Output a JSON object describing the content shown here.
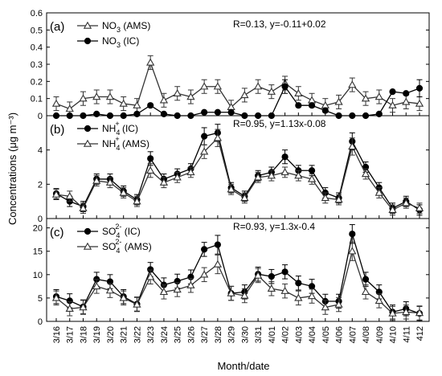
{
  "x_label": "Month/date",
  "y_label": "Concentrations (μg m⁻³)",
  "categories": [
    "3/16",
    "3/17",
    "3/18",
    "3/19",
    "3/20",
    "3/21",
    "3/22",
    "3/23",
    "3/24",
    "3/25",
    "3/26",
    "3/27",
    "3/28",
    "3/29",
    "3/30",
    "3/31",
    "4/01",
    "4/02",
    "4/03",
    "4/04",
    "4/05",
    "4/06",
    "4/07",
    "4/08",
    "4/09",
    "4/10",
    "4/11",
    "412"
  ],
  "chart_data": [
    {
      "type": "line",
      "panel_label": "(a)",
      "annotation": "R=0.13, y=-0.11+0.02",
      "ylim": [
        0,
        0.6
      ],
      "yticks": [
        0,
        0.1,
        0.2,
        0.3,
        0.4,
        0.5,
        0.6
      ],
      "legend_position": "top-left",
      "series": [
        {
          "name": "NO3 (AMS)",
          "name_base": "NO",
          "name_sub": "3",
          "name_sup": "",
          "name_suffix": " (AMS)",
          "marker": "open-triangle",
          "values": [
            0.07,
            0.04,
            0.1,
            0.11,
            0.11,
            0.07,
            0.06,
            0.31,
            0.09,
            0.13,
            0.11,
            0.17,
            0.17,
            0.05,
            0.12,
            0.17,
            0.14,
            0.19,
            0.13,
            0.09,
            0.06,
            0.08,
            0.18,
            0.1,
            0.11,
            0.06,
            0.08,
            0.07
          ],
          "errors": [
            0.04,
            0.04,
            0.04,
            0.04,
            0.04,
            0.04,
            0.04,
            0.04,
            0.04,
            0.04,
            0.04,
            0.04,
            0.04,
            0.04,
            0.04,
            0.04,
            0.04,
            0.04,
            0.04,
            0.04,
            0.04,
            0.04,
            0.04,
            0.04,
            0.04,
            0.04,
            0.04,
            0.04
          ]
        },
        {
          "name": "NO3 (IC)",
          "name_base": "NO",
          "name_sub": "3",
          "name_sup": "",
          "name_suffix": " (IC)",
          "marker": "filled-circle",
          "values": [
            0.0,
            0.0,
            0.0,
            0.01,
            0.0,
            0.0,
            0.01,
            0.06,
            0.01,
            0.0,
            0.0,
            0.02,
            0.02,
            0.02,
            0.0,
            0.0,
            0.0,
            0.17,
            0.06,
            0.06,
            0.03,
            0.0,
            0.0,
            0.0,
            0.01,
            0.14,
            0.13,
            0.16
          ],
          "errors": [
            0,
            0,
            0,
            0,
            0,
            0,
            0,
            0,
            0,
            0,
            0,
            0,
            0,
            0,
            0,
            0,
            0,
            0.04,
            0,
            0,
            0,
            0,
            0,
            0,
            0,
            0,
            0,
            0.05
          ]
        }
      ]
    },
    {
      "type": "line",
      "panel_label": "(b)",
      "annotation": "R=0.95, y=1.13x-0.08",
      "ylim": [
        0,
        6
      ],
      "yticks": [
        0,
        2,
        4
      ],
      "legend_position": "top-left",
      "series": [
        {
          "name": "NH4+ (IC)",
          "name_base": "NH",
          "name_sub": "4",
          "name_sup": "+",
          "name_suffix": " (IC)",
          "marker": "filled-circle",
          "values": [
            1.45,
            1.0,
            0.7,
            2.3,
            2.3,
            1.6,
            1.1,
            3.5,
            2.3,
            2.6,
            2.9,
            4.8,
            5.0,
            1.8,
            1.3,
            2.5,
            2.7,
            3.6,
            2.8,
            2.8,
            1.5,
            1.2,
            4.5,
            3.0,
            1.8,
            0.6,
            1.0,
            0.5
          ],
          "errors": [
            0.3,
            0.3,
            0.3,
            0.3,
            0.3,
            0.3,
            0.3,
            0.4,
            0.3,
            0.3,
            0.3,
            0.5,
            0.5,
            0.3,
            0.3,
            0.3,
            0.3,
            0.4,
            0.3,
            0.3,
            0.3,
            0.3,
            0.5,
            0.3,
            0.3,
            0.3,
            0.3,
            0.3
          ]
        },
        {
          "name": "NH4+ (AMS)",
          "name_base": "NH",
          "name_sub": "4",
          "name_sup": "+",
          "name_suffix": " (AMS)",
          "marker": "open-triangle",
          "values": [
            1.4,
            1.3,
            0.6,
            2.2,
            2.1,
            1.5,
            1.0,
            2.8,
            2.1,
            2.4,
            2.7,
            3.9,
            4.7,
            1.7,
            1.2,
            2.4,
            2.5,
            2.7,
            2.5,
            2.3,
            1.2,
            1.1,
            4.2,
            2.6,
            1.5,
            0.5,
            0.9,
            0.6
          ],
          "errors": [
            0.3,
            0.3,
            0.3,
            0.3,
            0.3,
            0.3,
            0.3,
            0.4,
            0.3,
            0.3,
            0.3,
            0.4,
            0.5,
            0.3,
            0.3,
            0.3,
            0.3,
            0.3,
            0.3,
            0.3,
            0.3,
            0.3,
            0.5,
            0.3,
            0.3,
            0.3,
            0.3,
            0.3
          ]
        }
      ]
    },
    {
      "type": "line",
      "panel_label": "(c)",
      "annotation": "R=0.93, y=1.3x-0.4",
      "ylim": [
        0,
        22
      ],
      "yticks": [
        0,
        5,
        10,
        15,
        20
      ],
      "legend_position": "top-left",
      "series": [
        {
          "name": "SO4 2- (IC)",
          "name_base": "SO",
          "name_sub": "4",
          "name_sup": "2-",
          "name_suffix": " (IC)",
          "marker": "filled-circle",
          "values": [
            5.3,
            4.4,
            3.1,
            9.0,
            8.5,
            5.3,
            3.7,
            11.1,
            7.8,
            8.6,
            9.5,
            15.4,
            16.4,
            6.0,
            6.3,
            10.1,
            9.6,
            10.6,
            8.2,
            7.5,
            4.3,
            4.3,
            18.7,
            9.0,
            6.3,
            2.0,
            2.7,
            1.7
          ],
          "errors": [
            1.5,
            1.5,
            1.5,
            1.5,
            1.5,
            1.5,
            1.5,
            1.5,
            1.5,
            1.5,
            1.5,
            1.5,
            2.0,
            1.5,
            1.5,
            1.5,
            1.5,
            1.5,
            1.5,
            1.5,
            1.5,
            1.5,
            2.0,
            1.5,
            1.5,
            1.5,
            1.5,
            1.5
          ]
        },
        {
          "name": "SO4 2- (AMS)",
          "name_base": "SO",
          "name_sub": "4",
          "name_sup": "2-",
          "name_suffix": " (AMS)",
          "marker": "open-triangle",
          "values": [
            5.0,
            2.7,
            3.0,
            7.5,
            6.6,
            5.0,
            3.6,
            9.5,
            6.3,
            6.8,
            7.7,
            10.0,
            12.2,
            6.0,
            5.5,
            9.8,
            7.0,
            6.5,
            5.0,
            5.4,
            3.0,
            3.6,
            15.0,
            6.3,
            4.4,
            1.7,
            2.0,
            1.8
          ],
          "errors": [
            1.5,
            1.5,
            1.5,
            1.5,
            1.5,
            1.5,
            1.5,
            1.5,
            1.5,
            1.5,
            1.5,
            1.5,
            2.0,
            1.5,
            1.5,
            1.5,
            1.5,
            1.5,
            1.5,
            1.5,
            1.5,
            1.5,
            2.0,
            1.5,
            1.5,
            1.5,
            1.5,
            1.5
          ]
        }
      ]
    }
  ]
}
